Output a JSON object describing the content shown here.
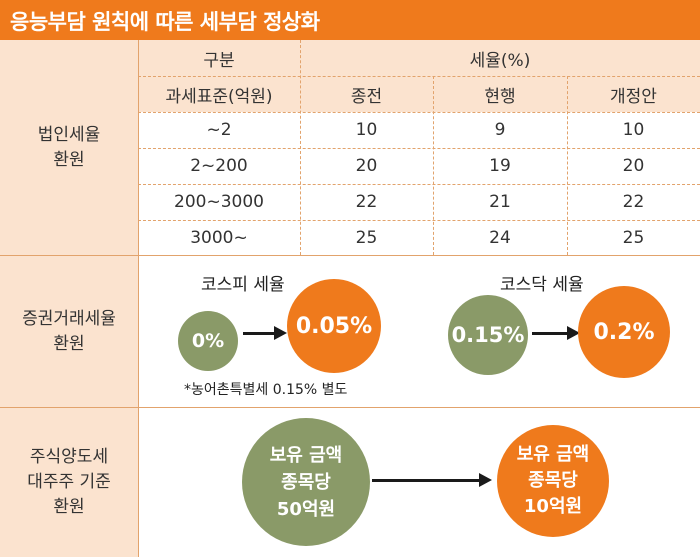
{
  "title": "응능부담 원칙에 따른 세부담 정상화",
  "section1": {
    "label": "법인세율\n환원",
    "header_col": "구분",
    "header_rate": "세율(%)",
    "subheaders": [
      "과세표준(억원)",
      "종전",
      "현행",
      "개정안"
    ],
    "rows": [
      [
        "~2",
        "10",
        "9",
        "10"
      ],
      [
        "2~200",
        "20",
        "19",
        "20"
      ],
      [
        "200~3000",
        "22",
        "21",
        "22"
      ],
      [
        "3000~",
        "25",
        "24",
        "25"
      ]
    ]
  },
  "section2": {
    "label": "증권거래세율\n환원",
    "kospi": {
      "title": "코스피 세율",
      "from": "0%",
      "to": "0.05%"
    },
    "kosdaq": {
      "title": "코스닥 세율",
      "from": "0.15%",
      "to": "0.2%"
    },
    "note": "*농어촌특별세 0.15% 별도"
  },
  "section3": {
    "label": "주식양도세\n대주주 기준\n환원",
    "from": "보유 금액\n종목당\n50억원",
    "to": "보유 금액\n종목당\n10억원"
  },
  "colors": {
    "accent": "#ef7a1c",
    "green": "#8a9a68",
    "tint": "#fbe3cf"
  }
}
